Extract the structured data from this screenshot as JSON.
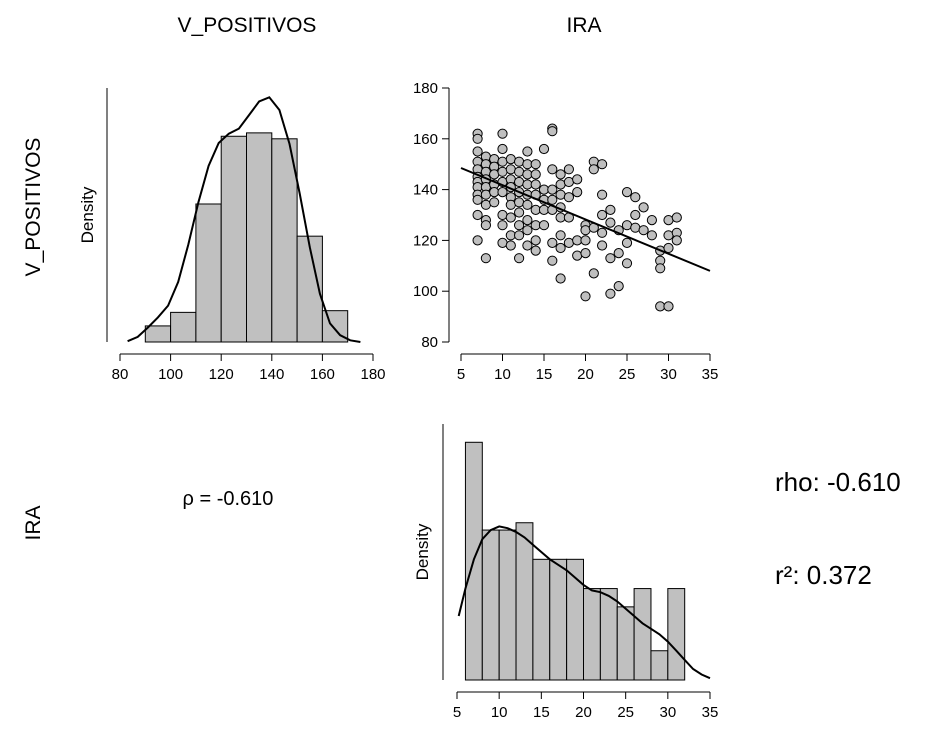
{
  "labels": {
    "col1": "V_POSITIVOS",
    "col2": "IRA",
    "row1": "V_POSITIVOS",
    "row2": "IRA",
    "density_1": "Density",
    "density_2": "Density",
    "corr_text": "ρ = -0.610",
    "rho_side": "rho: -0.610",
    "r2_side": "r²: 0.372"
  },
  "colors": {
    "bar_fill": "#c0c0c0",
    "point_fill": "#bfbfbf",
    "stroke": "#000000"
  },
  "chart_data": [
    {
      "type": "bar",
      "title": "",
      "xlabel": "",
      "ylabel": "Density",
      "xlim": [
        80,
        180
      ],
      "xticks": [
        80,
        100,
        120,
        140,
        160,
        180
      ],
      "bins": [
        90,
        100,
        110,
        120,
        130,
        140,
        150,
        160,
        170
      ],
      "density": [
        0.0019,
        0.0035,
        0.0163,
        0.0243,
        0.0247,
        0.024,
        0.0125,
        0.0037
      ],
      "density_curve": {
        "x": [
          83,
          87,
          91,
          95,
          99,
          103,
          107,
          111,
          115,
          119,
          123,
          127,
          131,
          135,
          139,
          143,
          147,
          151,
          155,
          159,
          163,
          167,
          171,
          175
        ],
        "y": [
          0.0001,
          0.0006,
          0.0017,
          0.0029,
          0.0043,
          0.0071,
          0.0115,
          0.0165,
          0.0208,
          0.0235,
          0.0246,
          0.0252,
          0.0268,
          0.0284,
          0.0289,
          0.0274,
          0.0234,
          0.0176,
          0.0112,
          0.0057,
          0.0022,
          0.0008,
          0.0002,
          0.0
        ]
      },
      "ylim": [
        0,
        0.03
      ]
    },
    {
      "type": "scatter",
      "title": "",
      "xlabel": "",
      "ylabel": "",
      "xlim": [
        5,
        35
      ],
      "ylim": [
        80,
        180
      ],
      "xticks": [
        5,
        10,
        15,
        20,
        25,
        30,
        35
      ],
      "yticks": [
        80,
        100,
        120,
        140,
        160,
        180
      ],
      "x": [
        7,
        7,
        7,
        7,
        7,
        7,
        7,
        7,
        7,
        7,
        7,
        7,
        8,
        8,
        8,
        8,
        8,
        8,
        8,
        8,
        8,
        8,
        9,
        9,
        9,
        9,
        9,
        9,
        10,
        10,
        10,
        10,
        10,
        10,
        10,
        10,
        10,
        11,
        11,
        11,
        11,
        11,
        11,
        11,
        11,
        11,
        12,
        12,
        12,
        12,
        12,
        12,
        12,
        12,
        12,
        13,
        13,
        13,
        13,
        13,
        13,
        13,
        13,
        13,
        14,
        14,
        14,
        14,
        14,
        14,
        14,
        14,
        15,
        15,
        15,
        15,
        15,
        16,
        16,
        16,
        16,
        16,
        16,
        16,
        16,
        17,
        17,
        17,
        17,
        17,
        17,
        17,
        17,
        18,
        18,
        18,
        18,
        18,
        19,
        19,
        19,
        19,
        20,
        20,
        20,
        20,
        20,
        21,
        21,
        21,
        21,
        22,
        22,
        22,
        22,
        22,
        23,
        23,
        23,
        23,
        24,
        24,
        24,
        25,
        25,
        25,
        25,
        26,
        26,
        26,
        27,
        27,
        28,
        28,
        29,
        29,
        29,
        29,
        30,
        30,
        30,
        30,
        31,
        31,
        31
      ],
      "y": [
        162,
        160,
        155,
        151,
        148,
        145,
        143,
        141,
        138,
        136,
        130,
        120,
        153,
        150,
        147,
        144,
        141,
        138,
        134,
        128,
        126,
        113,
        152,
        149,
        146,
        142,
        139,
        135,
        162,
        156,
        151,
        147,
        143,
        139,
        130,
        126,
        119,
        152,
        148,
        144,
        141,
        137,
        134,
        129,
        122,
        118,
        151,
        147,
        143,
        139,
        135,
        131,
        126,
        122,
        113,
        155,
        150,
        146,
        142,
        138,
        134,
        128,
        124,
        118,
        150,
        146,
        142,
        138,
        132,
        126,
        120,
        116,
        156,
        140,
        136,
        132,
        126,
        164,
        163,
        148,
        140,
        136,
        132,
        119,
        112,
        146,
        142,
        138,
        133,
        129,
        122,
        117,
        105,
        148,
        143,
        137,
        129,
        119,
        144,
        139,
        120,
        114,
        126,
        124,
        120,
        115,
        98,
        151,
        148,
        125,
        107,
        150,
        138,
        130,
        123,
        118,
        132,
        127,
        113,
        99,
        124,
        115,
        102,
        139,
        126,
        119,
        111,
        137,
        130,
        125,
        133,
        124,
        128,
        122,
        116,
        112,
        109,
        94,
        128,
        122,
        117,
        94,
        129,
        123,
        120
      ],
      "regression_line": {
        "x": [
          5,
          35
        ],
        "y": [
          148.5,
          108.0
        ]
      }
    },
    {
      "type": "bar",
      "title": "",
      "xlabel": "",
      "ylabel": "Density",
      "xlim": [
        5,
        35
      ],
      "xticks": [
        5,
        10,
        15,
        20,
        25,
        30,
        35
      ],
      "bins": [
        6,
        8,
        10,
        12,
        14,
        16,
        18,
        20,
        22,
        24,
        26,
        28,
        30,
        32
      ],
      "density": [
        0.13,
        0.082,
        0.082,
        0.086,
        0.066,
        0.066,
        0.066,
        0.05,
        0.05,
        0.04,
        0.05,
        0.016,
        0.05,
        0.016
      ],
      "density_curve": {
        "x": [
          5.2,
          6,
          7,
          8,
          9,
          10,
          11,
          12,
          13,
          14,
          15,
          16,
          17,
          18,
          19,
          20,
          21,
          22,
          23,
          24,
          25,
          26,
          27,
          28,
          29,
          30,
          31,
          32,
          33,
          34,
          35
        ],
        "y": [
          0.035,
          0.05,
          0.066,
          0.077,
          0.082,
          0.084,
          0.083,
          0.081,
          0.078,
          0.074,
          0.07,
          0.066,
          0.063,
          0.06,
          0.056,
          0.052,
          0.049,
          0.048,
          0.046,
          0.043,
          0.039,
          0.035,
          0.031,
          0.028,
          0.025,
          0.021,
          0.016,
          0.011,
          0.006,
          0.003,
          0.001
        ]
      },
      "ylim": [
        0,
        0.14
      ]
    }
  ]
}
